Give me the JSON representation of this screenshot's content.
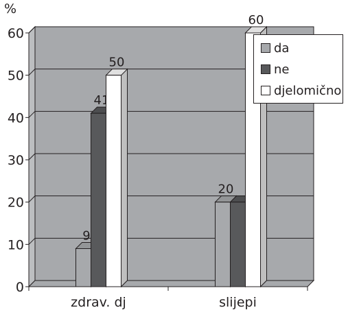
{
  "y_unit": "%",
  "chart_data": {
    "type": "bar",
    "categories": [
      "zdrav. dj",
      "slijepi"
    ],
    "series": [
      {
        "name": "da",
        "values": [
          9,
          20
        ],
        "color": "#a7a9ac"
      },
      {
        "name": "ne",
        "values": [
          41,
          20
        ],
        "color": "#58595b"
      },
      {
        "name": "djelomično",
        "values": [
          50,
          60
        ],
        "color": "#ffffff"
      }
    ],
    "data_labels": [
      [
        "9",
        "20"
      ],
      [
        "41",
        ""
      ],
      [
        "50",
        "60"
      ]
    ],
    "ylim": [
      0,
      60
    ],
    "yticks": [
      0,
      10,
      20,
      30,
      40,
      50,
      60
    ],
    "ylabel": "%",
    "grid": true,
    "legend": "right",
    "plot_background": "#a7a9ac",
    "three_d": true
  }
}
